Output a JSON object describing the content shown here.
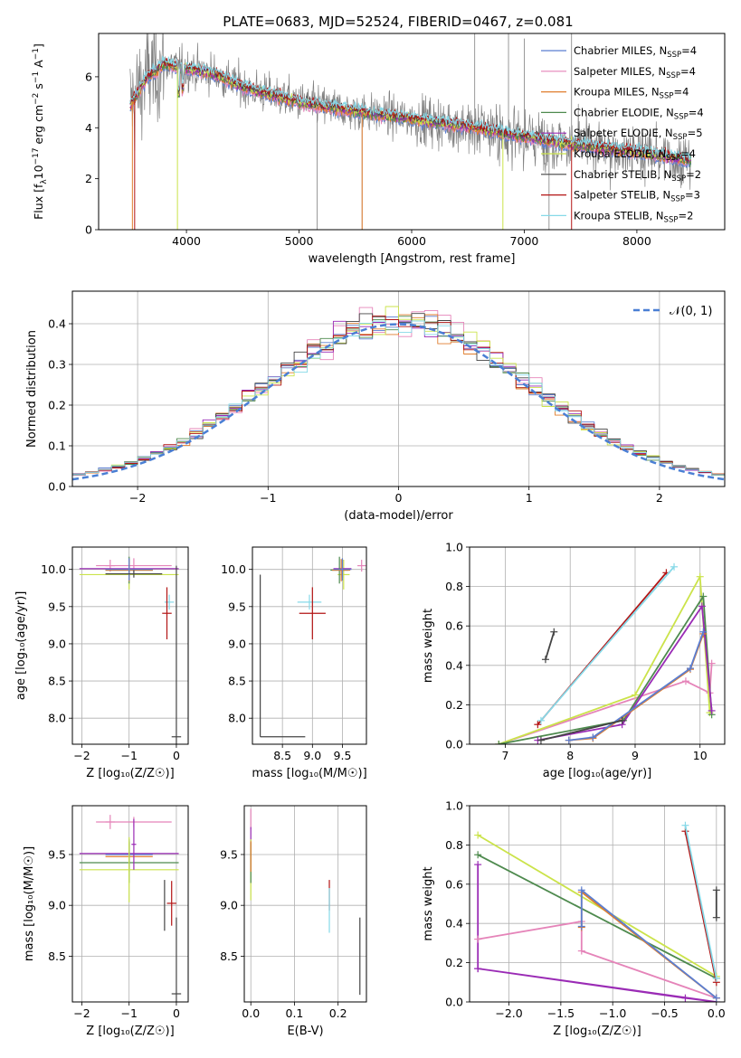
{
  "title": "PLATE=0683, MJD=52524, FIBERID=0467, z=0.081",
  "palette": {
    "chab_miles": "#5b7ed1",
    "salp_miles": "#e584b9",
    "krou_miles": "#e07d2d",
    "chab_elodie": "#4e8a4e",
    "salp_elodie": "#9a2bb5",
    "krou_elodie": "#cbe34a",
    "chab_stelib": "#444444",
    "salp_stelib": "#b31414",
    "krou_stelib": "#86d9e8",
    "data": "#808080",
    "normal": "#4a7fd4"
  },
  "chart_data": [
    {
      "id": "spectrum",
      "type": "line",
      "xlabel": "wavelength [Angstrom, rest frame]",
      "ylabel_main": "Flux [f",
      "ylabel_sub": "λ",
      "ylabel_mid": "10",
      "ylabel_sup1": "−17",
      "ylabel_rest1": " erg cm",
      "ylabel_sup2": "−2",
      "ylabel_rest2": " s",
      "ylabel_sup3": "−1",
      "ylabel_rest3": " A",
      "ylabel_sup4": "−1",
      "ylabel_end": "]",
      "xlim": [
        3220,
        8780
      ],
      "ylim": [
        0,
        7.7
      ],
      "xticks": [
        4000,
        5000,
        6000,
        7000,
        8000
      ],
      "xtick_labels": [
        "4000",
        "5000",
        "6000",
        "7000",
        "8000"
      ],
      "yticks": [
        0,
        2,
        4,
        6
      ],
      "ytick_labels": [
        "0",
        "2",
        "4",
        "6"
      ],
      "continuum": [
        [
          3500,
          4.9
        ],
        [
          3560,
          5.3
        ],
        [
          3650,
          6.0
        ],
        [
          3800,
          6.5
        ],
        [
          4000,
          6.3
        ],
        [
          4200,
          6.2
        ],
        [
          4500,
          5.6
        ],
        [
          5000,
          5.0
        ],
        [
          5500,
          4.65
        ],
        [
          6000,
          4.35
        ],
        [
          6500,
          4.05
        ],
        [
          7000,
          3.65
        ],
        [
          7500,
          3.3
        ],
        [
          8000,
          3.05
        ],
        [
          8500,
          2.7
        ]
      ],
      "legend": [
        {
          "key": "chab_miles",
          "base": "Chabrier MILES, N",
          "sub": "SSP",
          "tail": "=4"
        },
        {
          "key": "salp_miles",
          "base": "Salpeter MILES, N",
          "sub": "SSP",
          "tail": "=4"
        },
        {
          "key": "krou_miles",
          "base": "Kroupa MILES, N",
          "sub": "SSP",
          "tail": "=4"
        },
        {
          "key": "chab_elodie",
          "base": "Chabrier ELODIE, N",
          "sub": "SSP",
          "tail": "=4"
        },
        {
          "key": "salp_elodie",
          "base": "Salpeter ELODIE, N",
          "sub": "SSP",
          "tail": "=5"
        },
        {
          "key": "krou_elodie",
          "base": "Kroupa ELODIE, N",
          "sub": "SSP",
          "tail": "=4"
        },
        {
          "key": "chab_stelib",
          "base": "Chabrier STELIB, N",
          "sub": "SSP",
          "tail": "=2"
        },
        {
          "key": "salp_stelib",
          "base": "Salpeter STELIB, N",
          "sub": "SSP",
          "tail": "=3"
        },
        {
          "key": "krou_stelib",
          "base": "Kroupa STELIB, N",
          "sub": "SSP",
          "tail": "=2"
        }
      ]
    },
    {
      "id": "residuals",
      "type": "line",
      "xlabel": "(data-model)/error",
      "ylabel": "Normed distribution",
      "xlim": [
        -2.5,
        2.5
      ],
      "ylim": [
        0,
        0.48
      ],
      "xticks": [
        -2,
        -1,
        0,
        1,
        2
      ],
      "xtick_labels": [
        "−2",
        "−1",
        "0",
        "1",
        "2"
      ],
      "yticks": [
        0,
        0.1,
        0.2,
        0.3,
        0.4
      ],
      "ytick_labels": [
        "0.0",
        "0.1",
        "0.2",
        "0.3",
        "0.4"
      ],
      "bin_width": 0.1,
      "normal_label": "𝒩(0, 1)"
    },
    {
      "id": "age_vs_Z",
      "type": "scatter",
      "xlabel": "Z [log₁₀(Z/Z☉)]",
      "ylabel": "age  [log₁₀(age/yr)]",
      "xlim": [
        -2.2,
        0.25
      ],
      "ylim": [
        7.65,
        10.3
      ],
      "xticks": [
        -2,
        -1,
        0
      ],
      "xtick_labels": [
        "−2",
        "−1",
        "0"
      ],
      "yticks": [
        8.0,
        8.5,
        9.0,
        9.5,
        10.0
      ],
      "ytick_labels": [
        "8.0",
        "8.5",
        "9.0",
        "9.5",
        "10.0"
      ],
      "points": [
        {
          "key": "krou_elodie",
          "x": -1.0,
          "xerr": 1.05,
          "y": 9.93,
          "yerr": 0.2
        },
        {
          "key": "salp_miles",
          "x": -1.4,
          "xerr": 0.1,
          "y": 10.05,
          "yerr": 0.08
        },
        {
          "key": "salp_miles",
          "x": -0.9,
          "xerr": 0.8,
          "y": 10.05,
          "yerr": 0.1
        },
        {
          "key": "salp_elodie",
          "x": -1.0,
          "xerr": 1.05,
          "y": 10.01,
          "yerr": 0.12
        },
        {
          "key": "chab_elodie",
          "x": -1.0,
          "xerr": 0.5,
          "y": 9.99,
          "yerr": 0.18
        },
        {
          "key": "krou_miles",
          "x": -1.0,
          "xerr": 0.5,
          "y": 9.99,
          "yerr": 0.15
        },
        {
          "key": "chab_miles",
          "x": -1.0,
          "xerr": 0.5,
          "y": 10.0,
          "yerr": 0.15
        },
        {
          "key": "chab_stelib",
          "x": -0.9,
          "xerr": 0.6,
          "y": 9.94,
          "yerr": 0.05
        },
        {
          "key": "krou_stelib",
          "x": -0.15,
          "xerr": 0.1,
          "y": 9.56,
          "yerr": 0.1
        },
        {
          "key": "salp_stelib",
          "x": -0.2,
          "xerr": 0.1,
          "y": 9.41,
          "yerr": 0.35
        },
        {
          "key": "chab_stelib",
          "x": 0.0,
          "xerr": 0.1,
          "y": 7.75,
          "yerr": 2.3
        }
      ]
    },
    {
      "id": "age_vs_mass",
      "type": "scatter",
      "xlabel": "mass [log₁₀(M/M☉)]",
      "ylabel": "",
      "xlim": [
        8.0,
        9.9
      ],
      "ylim": [
        7.65,
        10.3
      ],
      "xticks": [
        8.5,
        9.0,
        9.5
      ],
      "xtick_labels": [
        "8.5",
        "9.0",
        "9.5"
      ],
      "yticks": [
        8.0,
        8.5,
        9.0,
        9.5,
        10.0
      ],
      "ytick_labels": [
        "8.0",
        "8.5",
        "9.0",
        "9.5",
        "10.0"
      ],
      "points": [
        {
          "key": "chab_stelib",
          "x": 8.13,
          "xerr": 0.0,
          "y": 9.93,
          "yerr": 0.0
        },
        {
          "key": "salp_miles",
          "x": 9.82,
          "xerr": 0.07,
          "y": 10.05,
          "yerr": 0.08
        },
        {
          "key": "krou_elodie",
          "x": 9.52,
          "xerr": 0.1,
          "y": 9.93,
          "yerr": 0.2
        },
        {
          "key": "salp_elodie",
          "x": 9.5,
          "xerr": 0.15,
          "y": 10.01,
          "yerr": 0.12
        },
        {
          "key": "chab_elodie",
          "x": 9.45,
          "xerr": 0.15,
          "y": 9.99,
          "yerr": 0.18
        },
        {
          "key": "krou_miles",
          "x": 9.48,
          "xerr": 0.15,
          "y": 9.99,
          "yerr": 0.15
        },
        {
          "key": "chab_miles",
          "x": 9.5,
          "xerr": 0.15,
          "y": 10.0,
          "yerr": 0.15
        },
        {
          "key": "krou_stelib",
          "x": 8.95,
          "xerr": 0.2,
          "y": 9.56,
          "yerr": 0.1
        },
        {
          "key": "salp_stelib",
          "x": 9.0,
          "xerr": 0.22,
          "y": 9.41,
          "yerr": 0.35
        }
      ],
      "segments": [
        {
          "key": "chab_stelib",
          "x1": 8.13,
          "y1": 9.93,
          "x2": 8.13,
          "y2": 7.75
        },
        {
          "key": "chab_stelib",
          "x1": 8.13,
          "y1": 7.75,
          "x2": 8.88,
          "y2": 7.75
        }
      ]
    },
    {
      "id": "mw_vs_age",
      "type": "line",
      "xlabel": "age  [log₁₀(age/yr)]",
      "ylabel": "mass weight",
      "xlim": [
        6.45,
        10.38
      ],
      "ylim": [
        0,
        1.0
      ],
      "xticks": [
        7,
        8,
        9,
        10
      ],
      "xtick_labels": [
        "7",
        "8",
        "9",
        "10"
      ],
      "yticks": [
        0,
        0.2,
        0.4,
        0.6,
        0.8,
        1.0
      ],
      "ytick_labels": [
        "0.0",
        "0.2",
        "0.4",
        "0.6",
        "0.8",
        "1.0"
      ],
      "series": [
        {
          "key": "chab_stelib",
          "x": [
            7.75,
            7.62
          ],
          "y": [
            0.57,
            0.43
          ]
        },
        {
          "key": "salp_miles",
          "x": [
            6.9,
            9.78,
            10.15,
            10.18
          ],
          "y": [
            0.0,
            0.32,
            0.26,
            0.41
          ]
        },
        {
          "key": "krou_elodie",
          "x": [
            6.9,
            9.0,
            10.0,
            10.15
          ],
          "y": [
            0.0,
            0.25,
            0.85,
            0.16
          ]
        },
        {
          "key": "chab_elodie",
          "x": [
            6.9,
            8.82,
            10.05,
            10.18
          ],
          "y": [
            0.0,
            0.12,
            0.75,
            0.15
          ]
        },
        {
          "key": "salp_elodie",
          "x": [
            7.5,
            8.8,
            10.03,
            10.18
          ],
          "y": [
            0.02,
            0.1,
            0.7,
            0.17
          ]
        },
        {
          "key": "krou_miles",
          "x": [
            7.98,
            8.35,
            9.85,
            10.05
          ],
          "y": [
            0.02,
            0.03,
            0.38,
            0.56
          ]
        },
        {
          "key": "chab_miles",
          "x": [
            7.98,
            8.35,
            9.85,
            10.05
          ],
          "y": [
            0.02,
            0.035,
            0.385,
            0.57
          ]
        },
        {
          "key": "chab_stelib",
          "x": [
            7.55,
            8.8
          ],
          "y": [
            0.02,
            0.12
          ]
        },
        {
          "key": "salp_stelib",
          "x": [
            7.5,
            9.48
          ],
          "y": [
            0.1,
            0.87
          ]
        },
        {
          "key": "krou_stelib",
          "x": [
            7.55,
            9.6
          ],
          "y": [
            0.12,
            0.9
          ]
        }
      ]
    },
    {
      "id": "mass_vs_Z",
      "type": "scatter",
      "xlabel": "Z [log₁₀(Z/Z☉)]",
      "ylabel": "mass [log₁₀(M/M☉)]",
      "xlim": [
        -2.2,
        0.25
      ],
      "ylim": [
        8.05,
        9.98
      ],
      "xticks": [
        -2,
        -1,
        0
      ],
      "xtick_labels": [
        "−2",
        "−1",
        "0"
      ],
      "yticks": [
        8.5,
        9.0,
        9.5
      ],
      "ytick_labels": [
        "8.5",
        "9.0",
        "9.5"
      ],
      "points": [
        {
          "key": "salp_miles",
          "x": -1.4,
          "xerr": 0.1,
          "y": 9.82,
          "yerr": 0.07
        },
        {
          "key": "salp_miles",
          "x": -0.9,
          "xerr": 0.8,
          "y": 9.82,
          "yerr": 0.05
        },
        {
          "key": "salp_elodie",
          "x": -1.0,
          "xerr": 1.05,
          "y": 9.51,
          "yerr": 0.12
        },
        {
          "key": "krou_miles",
          "x": -1.0,
          "xerr": 0.5,
          "y": 9.48,
          "yerr": 0.15
        },
        {
          "key": "chab_miles",
          "x": -1.0,
          "xerr": 0.5,
          "y": 9.5,
          "yerr": 0.15
        },
        {
          "key": "chab_elodie",
          "x": -1.0,
          "xerr": 1.05,
          "y": 9.42,
          "yerr": 0.2
        },
        {
          "key": "krou_elodie",
          "x": -1.0,
          "xerr": 1.05,
          "y": 9.35,
          "yerr": 0.32
        },
        {
          "key": "salp_elodie",
          "x": -0.9,
          "xerr": 0.05,
          "y": 9.6,
          "yerr": 0.25
        },
        {
          "key": "salp_stelib",
          "x": -0.1,
          "xerr": 0.1,
          "y": 9.02,
          "yerr": 0.22
        },
        {
          "key": "chab_stelib",
          "x": -0.25,
          "xerr": 0.0,
          "y": 9.0,
          "yerr": 0.25
        },
        {
          "key": "chab_stelib",
          "x": 0.0,
          "xerr": 0.1,
          "y": 8.13,
          "yerr": 0.75
        }
      ]
    },
    {
      "id": "mass_vs_ebv",
      "type": "scatter",
      "xlabel": "E(B-V)",
      "ylabel": "",
      "xlim": [
        -0.015,
        0.265
      ],
      "ylim": [
        8.05,
        9.98
      ],
      "xticks": [
        0.0,
        0.1,
        0.2
      ],
      "xtick_labels": [
        "0.0",
        "0.1",
        "0.2"
      ],
      "yticks": [
        8.5,
        9.0,
        9.5
      ],
      "ytick_labels": [
        "8.5",
        "9.0",
        "9.5"
      ],
      "points": [
        {
          "key": "salp_miles",
          "x": 0.0,
          "xerr": 0.0,
          "y": 9.85,
          "yerr": 0.1
        },
        {
          "key": "salp_elodie",
          "x": 0.0,
          "xerr": 0.0,
          "y": 9.55,
          "yerr": 0.22
        },
        {
          "key": "krou_elodie",
          "x": 0.0,
          "xerr": 0.0,
          "y": 9.35,
          "yerr": 0.3
        },
        {
          "key": "chab_elodie",
          "x": 0.0,
          "xerr": 0.0,
          "y": 9.42,
          "yerr": 0.2
        },
        {
          "key": "krou_miles",
          "x": 0.0,
          "xerr": 0.0,
          "y": 9.48,
          "yerr": 0.15
        },
        {
          "key": "salp_stelib",
          "x": 0.18,
          "xerr": 0.0,
          "y": 9.1,
          "yerr": 0.15
        },
        {
          "key": "krou_stelib",
          "x": 0.18,
          "xerr": 0.0,
          "y": 8.95,
          "yerr": 0.22
        },
        {
          "key": "chab_stelib",
          "x": 0.25,
          "xerr": 0.0,
          "y": 8.5,
          "yerr": 0.38
        }
      ]
    },
    {
      "id": "mw_vs_Z",
      "type": "line",
      "xlabel": "Z [log₁₀(Z/Z☉)]",
      "ylabel": "mass weight",
      "xlim": [
        -2.38,
        0.08
      ],
      "ylim": [
        0,
        1.0
      ],
      "xticks": [
        -2.0,
        -1.5,
        -1.0,
        -0.5,
        0.0
      ],
      "xtick_labels": [
        "−2.0",
        "−1.5",
        "−1.0",
        "−0.5",
        "0.0"
      ],
      "yticks": [
        0,
        0.2,
        0.4,
        0.6,
        0.8,
        1.0
      ],
      "ytick_labels": [
        "0.0",
        "0.2",
        "0.4",
        "0.6",
        "0.8",
        "1.0"
      ],
      "series": [
        {
          "key": "krou_elodie",
          "x": [
            -2.3,
            0.0
          ],
          "y": [
            0.85,
            0.13
          ]
        },
        {
          "key": "chab_elodie",
          "x": [
            -2.3,
            0.0
          ],
          "y": [
            0.75,
            0.12
          ]
        },
        {
          "key": "salp_elodie",
          "x": [
            -2.3,
            -2.3,
            0.0,
            -0.3,
            -2.3
          ],
          "y": [
            0.7,
            0.17,
            0.0,
            0.02,
            0.17
          ]
        },
        {
          "key": "salp_miles",
          "x": [
            -2.3,
            -1.3,
            -1.3,
            0.0
          ],
          "y": [
            0.32,
            0.41,
            0.26,
            0.02
          ]
        },
        {
          "key": "krou_miles",
          "x": [
            -1.3,
            -1.3,
            0.0
          ],
          "y": [
            0.38,
            0.56,
            0.02
          ]
        },
        {
          "key": "chab_miles",
          "x": [
            -1.3,
            -1.3,
            0.0
          ],
          "y": [
            0.385,
            0.57,
            0.02
          ]
        },
        {
          "key": "chab_stelib",
          "x": [
            0.0,
            0.0
          ],
          "y": [
            0.57,
            0.43
          ]
        },
        {
          "key": "salp_stelib",
          "x": [
            -0.3,
            0.0
          ],
          "y": [
            0.87,
            0.1
          ]
        },
        {
          "key": "krou_stelib",
          "x": [
            -0.3,
            0.0
          ],
          "y": [
            0.9,
            0.12
          ]
        }
      ]
    }
  ]
}
